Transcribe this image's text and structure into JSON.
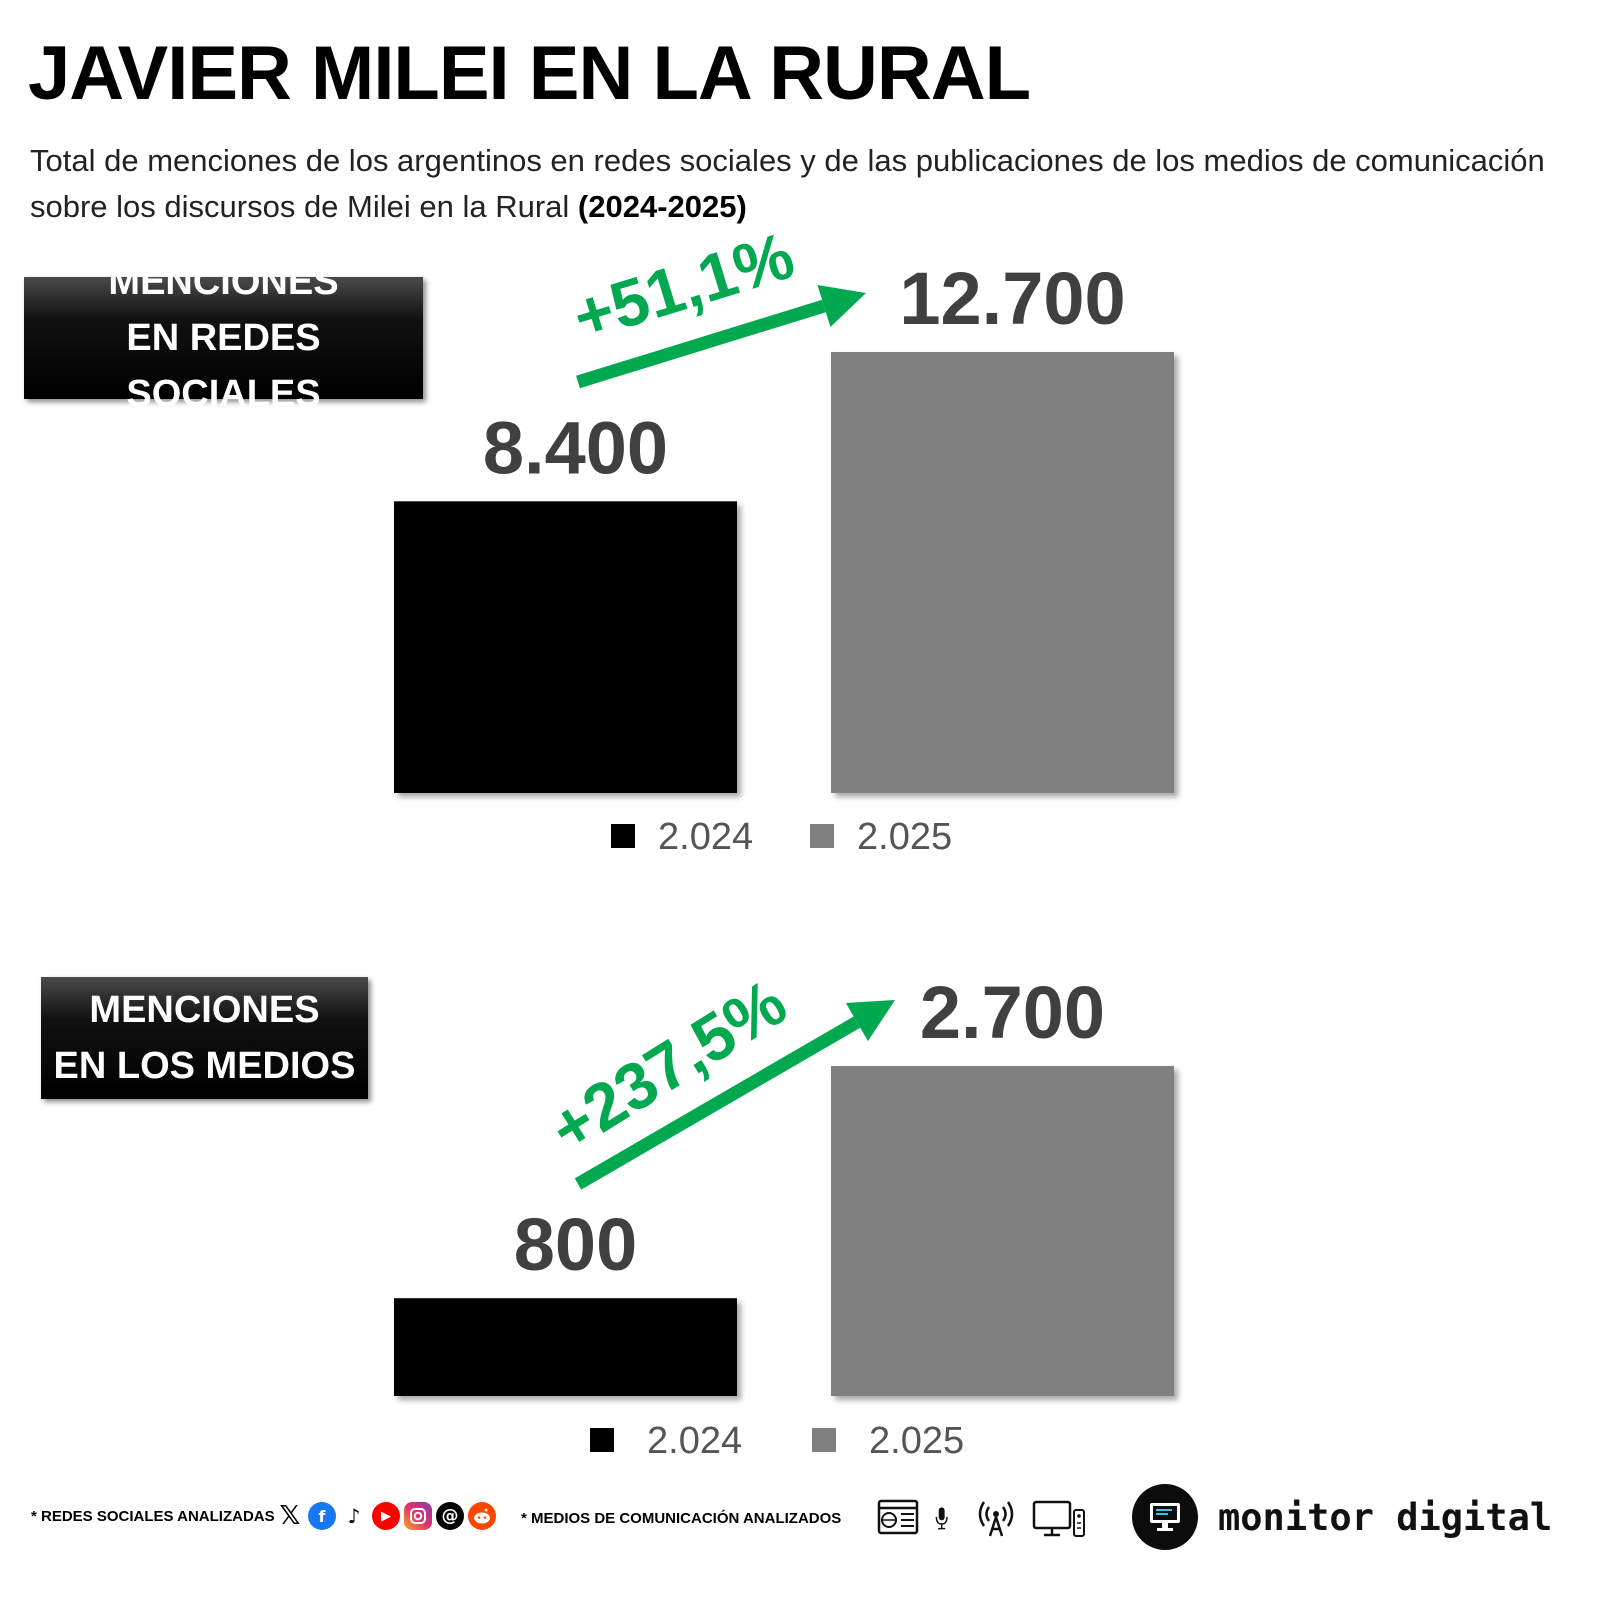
{
  "header": {
    "title": "JAVIER MILEI EN LA RURAL",
    "subtitle_main": "Total de menciones de los argentinos en redes sociales y de las publicaciones de los medios de comunicación sobre los discursos de Milei en la Rural",
    "subtitle_bold": "(2024-2025)"
  },
  "sections": [
    {
      "label_line1": "MENCIONES",
      "label_line2": "EN REDES SOCIALES"
    },
    {
      "label_line1": "MENCIONES",
      "label_line2": "EN LOS MEDIOS"
    }
  ],
  "chart_data": [
    {
      "type": "bar",
      "title": "MENCIONES EN REDES SOCIALES",
      "categories": [
        "2.024",
        "2.025"
      ],
      "values": [
        8400,
        12700
      ],
      "value_labels": [
        "8.400",
        "12.700"
      ],
      "colors": [
        "#000000",
        "#808080"
      ],
      "legend": [
        "2.024",
        "2.025"
      ],
      "legend_position": "bottom",
      "change_label": "+51,1%",
      "change_color": "#00a94f",
      "ylim": [
        0,
        12700
      ],
      "grid": false
    },
    {
      "type": "bar",
      "title": "MENCIONES EN LOS MEDIOS",
      "categories": [
        "2.024",
        "2.025"
      ],
      "values": [
        800,
        2700
      ],
      "value_labels": [
        "800",
        "2.700"
      ],
      "colors": [
        "#000000",
        "#808080"
      ],
      "legend": [
        "2.024",
        "2.025"
      ],
      "legend_position": "bottom",
      "change_label": "+237,5%",
      "change_color": "#00a94f",
      "ylim": [
        0,
        2700
      ],
      "grid": false
    }
  ],
  "footer": {
    "social_note": "* REDES SOCIALES ANALIZADAS",
    "media_note": "* MEDIOS DE COMUNICACIÓN ANALIZADOS",
    "social_icons": [
      "x-icon",
      "facebook-icon",
      "tiktok-icon",
      "youtube-icon",
      "instagram-icon",
      "threads-icon",
      "reddit-icon"
    ],
    "media_icons": [
      "web-news-icon",
      "microphone-icon",
      "radio-antenna-icon",
      "tv-icon"
    ],
    "brand": "monitor digital"
  }
}
